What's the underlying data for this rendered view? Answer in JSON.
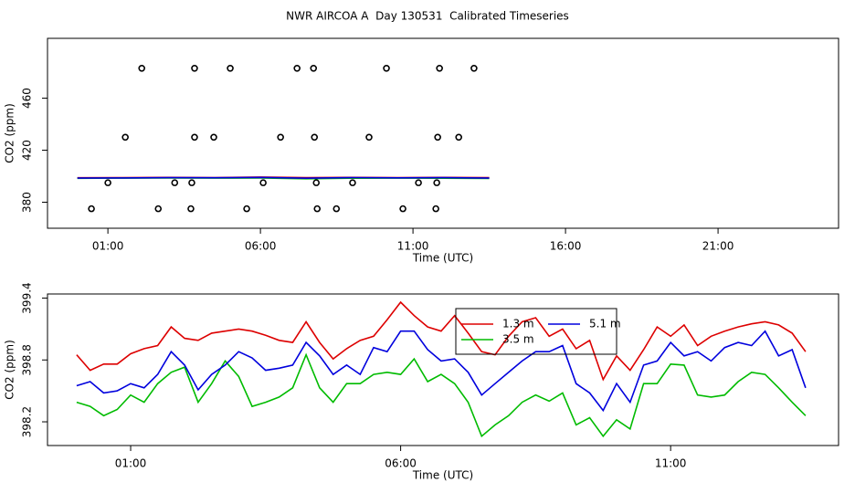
{
  "chart_data": [
    {
      "type": "line",
      "title": "NWR AIRCOA A  Day 130531  Calibrated Timeseries",
      "x_label": "Time (UTC)",
      "y_label": "CO2 (ppm)",
      "xlim": [
        -0.98,
        24.95
      ],
      "ylim": [
        360,
        506
      ],
      "xticks": [
        {
          "value": 1,
          "label": "01:00"
        },
        {
          "value": 6,
          "label": "06:00"
        },
        {
          "value": 11,
          "label": "11:00"
        },
        {
          "value": 16,
          "label": "16:00"
        },
        {
          "value": 21,
          "label": "21:00"
        }
      ],
      "yticks": [
        380,
        420,
        460
      ],
      "x": [
        0,
        1.5,
        3,
        4.5,
        6,
        7.5,
        9,
        10.5,
        12,
        13.5
      ],
      "series": [
        {
          "color": "#dd0000",
          "values": [
            398.85,
            398.94,
            399.1,
            398.97,
            399.36,
            398.88,
            399.1,
            398.9,
            399.08,
            398.88
          ]
        },
        {
          "color": "#00bb00",
          "values": [
            398.39,
            398.57,
            398.64,
            398.53,
            398.66,
            398.06,
            398.48,
            398.57,
            398.46,
            398.26
          ]
        },
        {
          "color": "#0000dd",
          "values": [
            398.55,
            398.66,
            398.88,
            398.84,
            399.08,
            398.46,
            398.94,
            398.75,
            398.92,
            398.53
          ]
        }
      ],
      "points": {
        "x": [
          2.11,
          3.84,
          5.01,
          7.2,
          7.74,
          10.13,
          11.87,
          13.0,
          1.57,
          3.84,
          4.47,
          6.66,
          7.77,
          9.56,
          11.81,
          12.5,
          1.0,
          3.19,
          3.75,
          6.09,
          7.83,
          9.02,
          11.18,
          11.78,
          0.46,
          2.65,
          3.72,
          5.55,
          7.86,
          8.49,
          10.67,
          11.75
        ],
        "y": [
          483,
          483,
          483,
          483,
          483,
          483,
          483,
          483,
          430,
          430,
          430,
          430,
          430,
          430,
          430,
          430,
          395,
          395,
          395,
          395,
          395,
          395,
          395,
          395,
          375,
          375,
          375,
          375,
          375,
          375,
          375,
          375
        ]
      }
    },
    {
      "type": "line",
      "x_label": "Time (UTC)",
      "y_label": "CO2 (ppm)",
      "xlim": [
        -0.54,
        14.11
      ],
      "ylim": [
        397.97,
        399.44
      ],
      "xticks": [
        {
          "value": 1,
          "label": "01:00"
        },
        {
          "value": 6,
          "label": "06:00"
        },
        {
          "value": 11,
          "label": "11:00"
        }
      ],
      "yticks": [
        398.2,
        398.8,
        399.4
      ],
      "legend": "top",
      "x": [
        0,
        0.25,
        0.5,
        0.75,
        1,
        1.25,
        1.5,
        1.75,
        2,
        2.25,
        2.5,
        2.75,
        3,
        3.25,
        3.5,
        3.75,
        4,
        4.25,
        4.5,
        4.75,
        5,
        5.25,
        5.5,
        5.75,
        6,
        6.25,
        6.5,
        6.75,
        7,
        7.25,
        7.5,
        7.75,
        8,
        8.25,
        8.5,
        8.75,
        9,
        9.25,
        9.5,
        9.75,
        10,
        10.25,
        10.5,
        10.75,
        11,
        11.25,
        11.5,
        11.75,
        12,
        12.25,
        12.5,
        12.75,
        13,
        13.25,
        13.5
      ],
      "series": [
        {
          "name": "1.3 m",
          "color": "#dd0000",
          "values": [
            398.85,
            398.7,
            398.76,
            398.76,
            398.86,
            398.91,
            398.94,
            399.12,
            399.01,
            398.99,
            399.06,
            399.08,
            399.1,
            399.08,
            399.04,
            398.99,
            398.97,
            399.17,
            398.97,
            398.81,
            398.91,
            398.99,
            399.03,
            399.19,
            399.36,
            399.23,
            399.12,
            399.08,
            399.23,
            399.06,
            398.88,
            398.85,
            399.03,
            399.17,
            399.21,
            399.03,
            399.1,
            398.91,
            398.99,
            398.61,
            398.84,
            398.7,
            398.9,
            399.12,
            399.03,
            399.14,
            398.94,
            399.03,
            399.08,
            399.12,
            399.15,
            399.17,
            399.14,
            399.06,
            398.88
          ]
        },
        {
          "name": "3.5 m",
          "color": "#00bb00",
          "values": [
            398.39,
            398.35,
            398.26,
            398.32,
            398.46,
            398.39,
            398.57,
            398.68,
            398.73,
            398.39,
            398.57,
            398.79,
            398.64,
            398.35,
            398.39,
            398.44,
            398.53,
            398.85,
            398.53,
            398.39,
            398.57,
            398.57,
            398.66,
            398.68,
            398.66,
            398.81,
            398.59,
            398.66,
            398.57,
            398.39,
            398.06,
            398.17,
            398.26,
            398.39,
            398.46,
            398.4,
            398.48,
            398.17,
            398.24,
            398.06,
            398.22,
            398.13,
            398.57,
            398.57,
            398.76,
            398.75,
            398.46,
            398.44,
            398.46,
            398.59,
            398.68,
            398.66,
            398.53,
            398.39,
            398.26
          ]
        },
        {
          "name": "5.1 m",
          "color": "#0000dd",
          "values": [
            398.55,
            398.59,
            398.48,
            398.5,
            398.57,
            398.53,
            398.66,
            398.88,
            398.75,
            398.51,
            398.66,
            398.75,
            398.88,
            398.82,
            398.7,
            398.72,
            398.75,
            398.97,
            398.84,
            398.66,
            398.75,
            398.66,
            398.92,
            398.88,
            399.08,
            399.08,
            398.9,
            398.79,
            398.81,
            398.68,
            398.46,
            398.57,
            398.68,
            398.79,
            398.88,
            398.88,
            398.94,
            398.57,
            398.48,
            398.31,
            398.57,
            398.39,
            398.75,
            398.79,
            398.97,
            398.84,
            398.88,
            398.79,
            398.92,
            398.97,
            398.94,
            399.08,
            398.84,
            398.9,
            398.53
          ]
        }
      ]
    }
  ]
}
